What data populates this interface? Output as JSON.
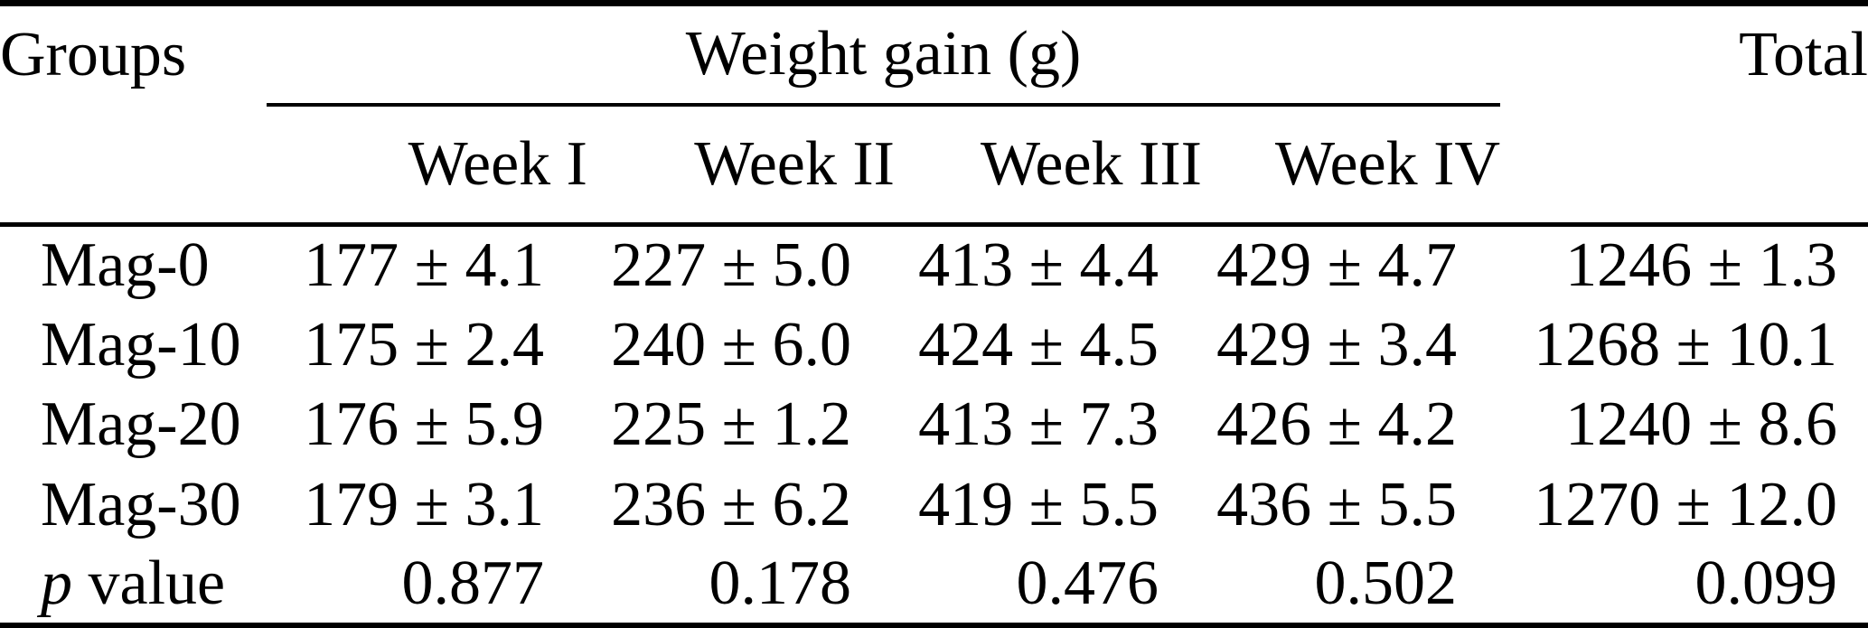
{
  "page": {
    "background_color": "#ffffff",
    "text_color": "#000000"
  },
  "table": {
    "header": {
      "groups_label": "Groups",
      "span_label": "Weight gain (g)",
      "total_label": "Total",
      "week_labels": [
        "Week I",
        "Week II",
        "Week III",
        "Week IV"
      ]
    },
    "rows": [
      {
        "label": "Mag-0",
        "values": [
          "177 ± 4.1",
          "227 ± 5.0",
          "413 ± 4.4",
          "429 ± 4.7",
          "1246 ± 1.3"
        ]
      },
      {
        "label": "Mag-10",
        "values": [
          "175 ± 2.4",
          "240 ± 6.0",
          "424 ± 4.5",
          "429 ± 3.4",
          "1268 ± 10.1"
        ]
      },
      {
        "label": "Mag-20",
        "values": [
          "176 ± 5.9",
          "225 ± 1.2",
          "413 ± 7.3",
          "426 ± 4.2",
          "1240 ± 8.6"
        ]
      },
      {
        "label": "Mag-30",
        "values": [
          "179 ± 3.1",
          "236 ± 6.2",
          "419 ± 5.5",
          "436 ± 5.5",
          "1270 ± 12.0"
        ]
      },
      {
        "label": "p value",
        "label_italic_prefix": "p",
        "label_rest": " value",
        "values": [
          "0.877",
          "0.178",
          "0.476",
          "0.502",
          "0.099"
        ]
      }
    ]
  }
}
